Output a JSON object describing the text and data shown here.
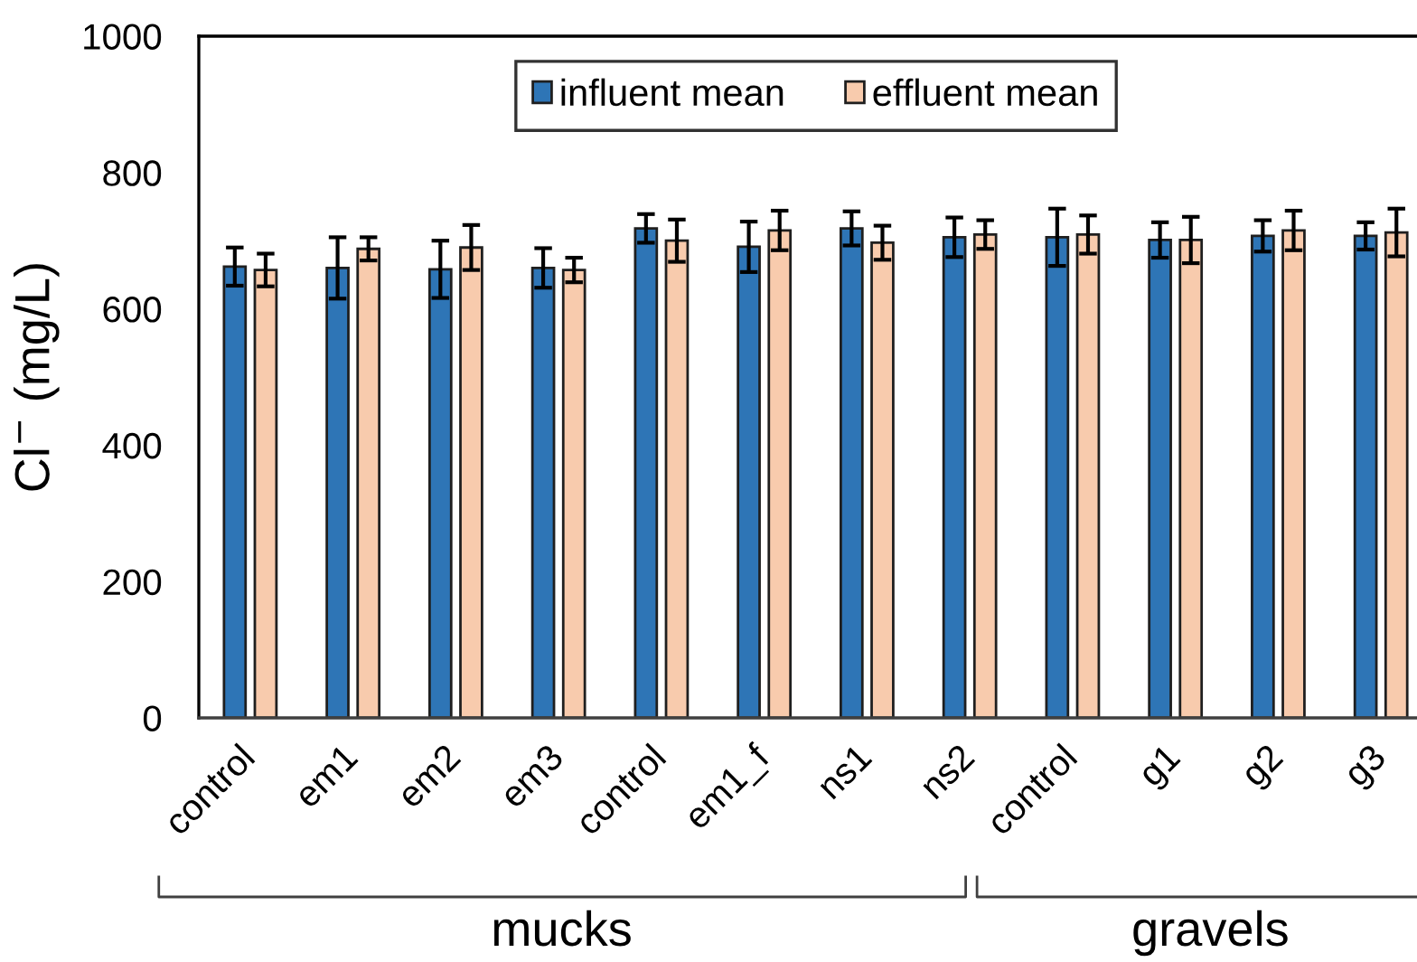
{
  "chart_data": {
    "type": "bar",
    "ylabel": "Cl$^{−}$ (mg/L)",
    "categories": [
      "control",
      "em1",
      "em2",
      "em3",
      "control",
      "em1_f",
      "ns1",
      "ns2",
      "control",
      "g1",
      "g2",
      "g3"
    ],
    "series": [
      {
        "name": "influent mean",
        "color": "#2e75b6",
        "values": [
          662,
          660,
          658,
          660,
          718,
          691,
          718,
          705,
          705,
          701,
          707,
          707
        ],
        "errors": [
          28,
          45,
          42,
          29,
          21,
          37,
          25,
          29,
          42,
          26,
          23,
          20
        ]
      },
      {
        "name": "effluent mean",
        "color": "#f8cbad",
        "values": [
          657,
          688,
          690,
          657,
          700,
          715,
          697,
          709,
          709,
          701,
          715,
          712
        ],
        "errors": [
          24,
          17,
          33,
          18,
          31,
          29,
          25,
          21,
          28,
          34,
          29,
          35
        ]
      }
    ],
    "ylim": [
      0,
      1000
    ],
    "yticks": [
      0,
      200,
      400,
      600,
      800,
      1000
    ],
    "grid": false,
    "legend": "top",
    "annotations": [
      "mucks",
      "gravels"
    ]
  }
}
